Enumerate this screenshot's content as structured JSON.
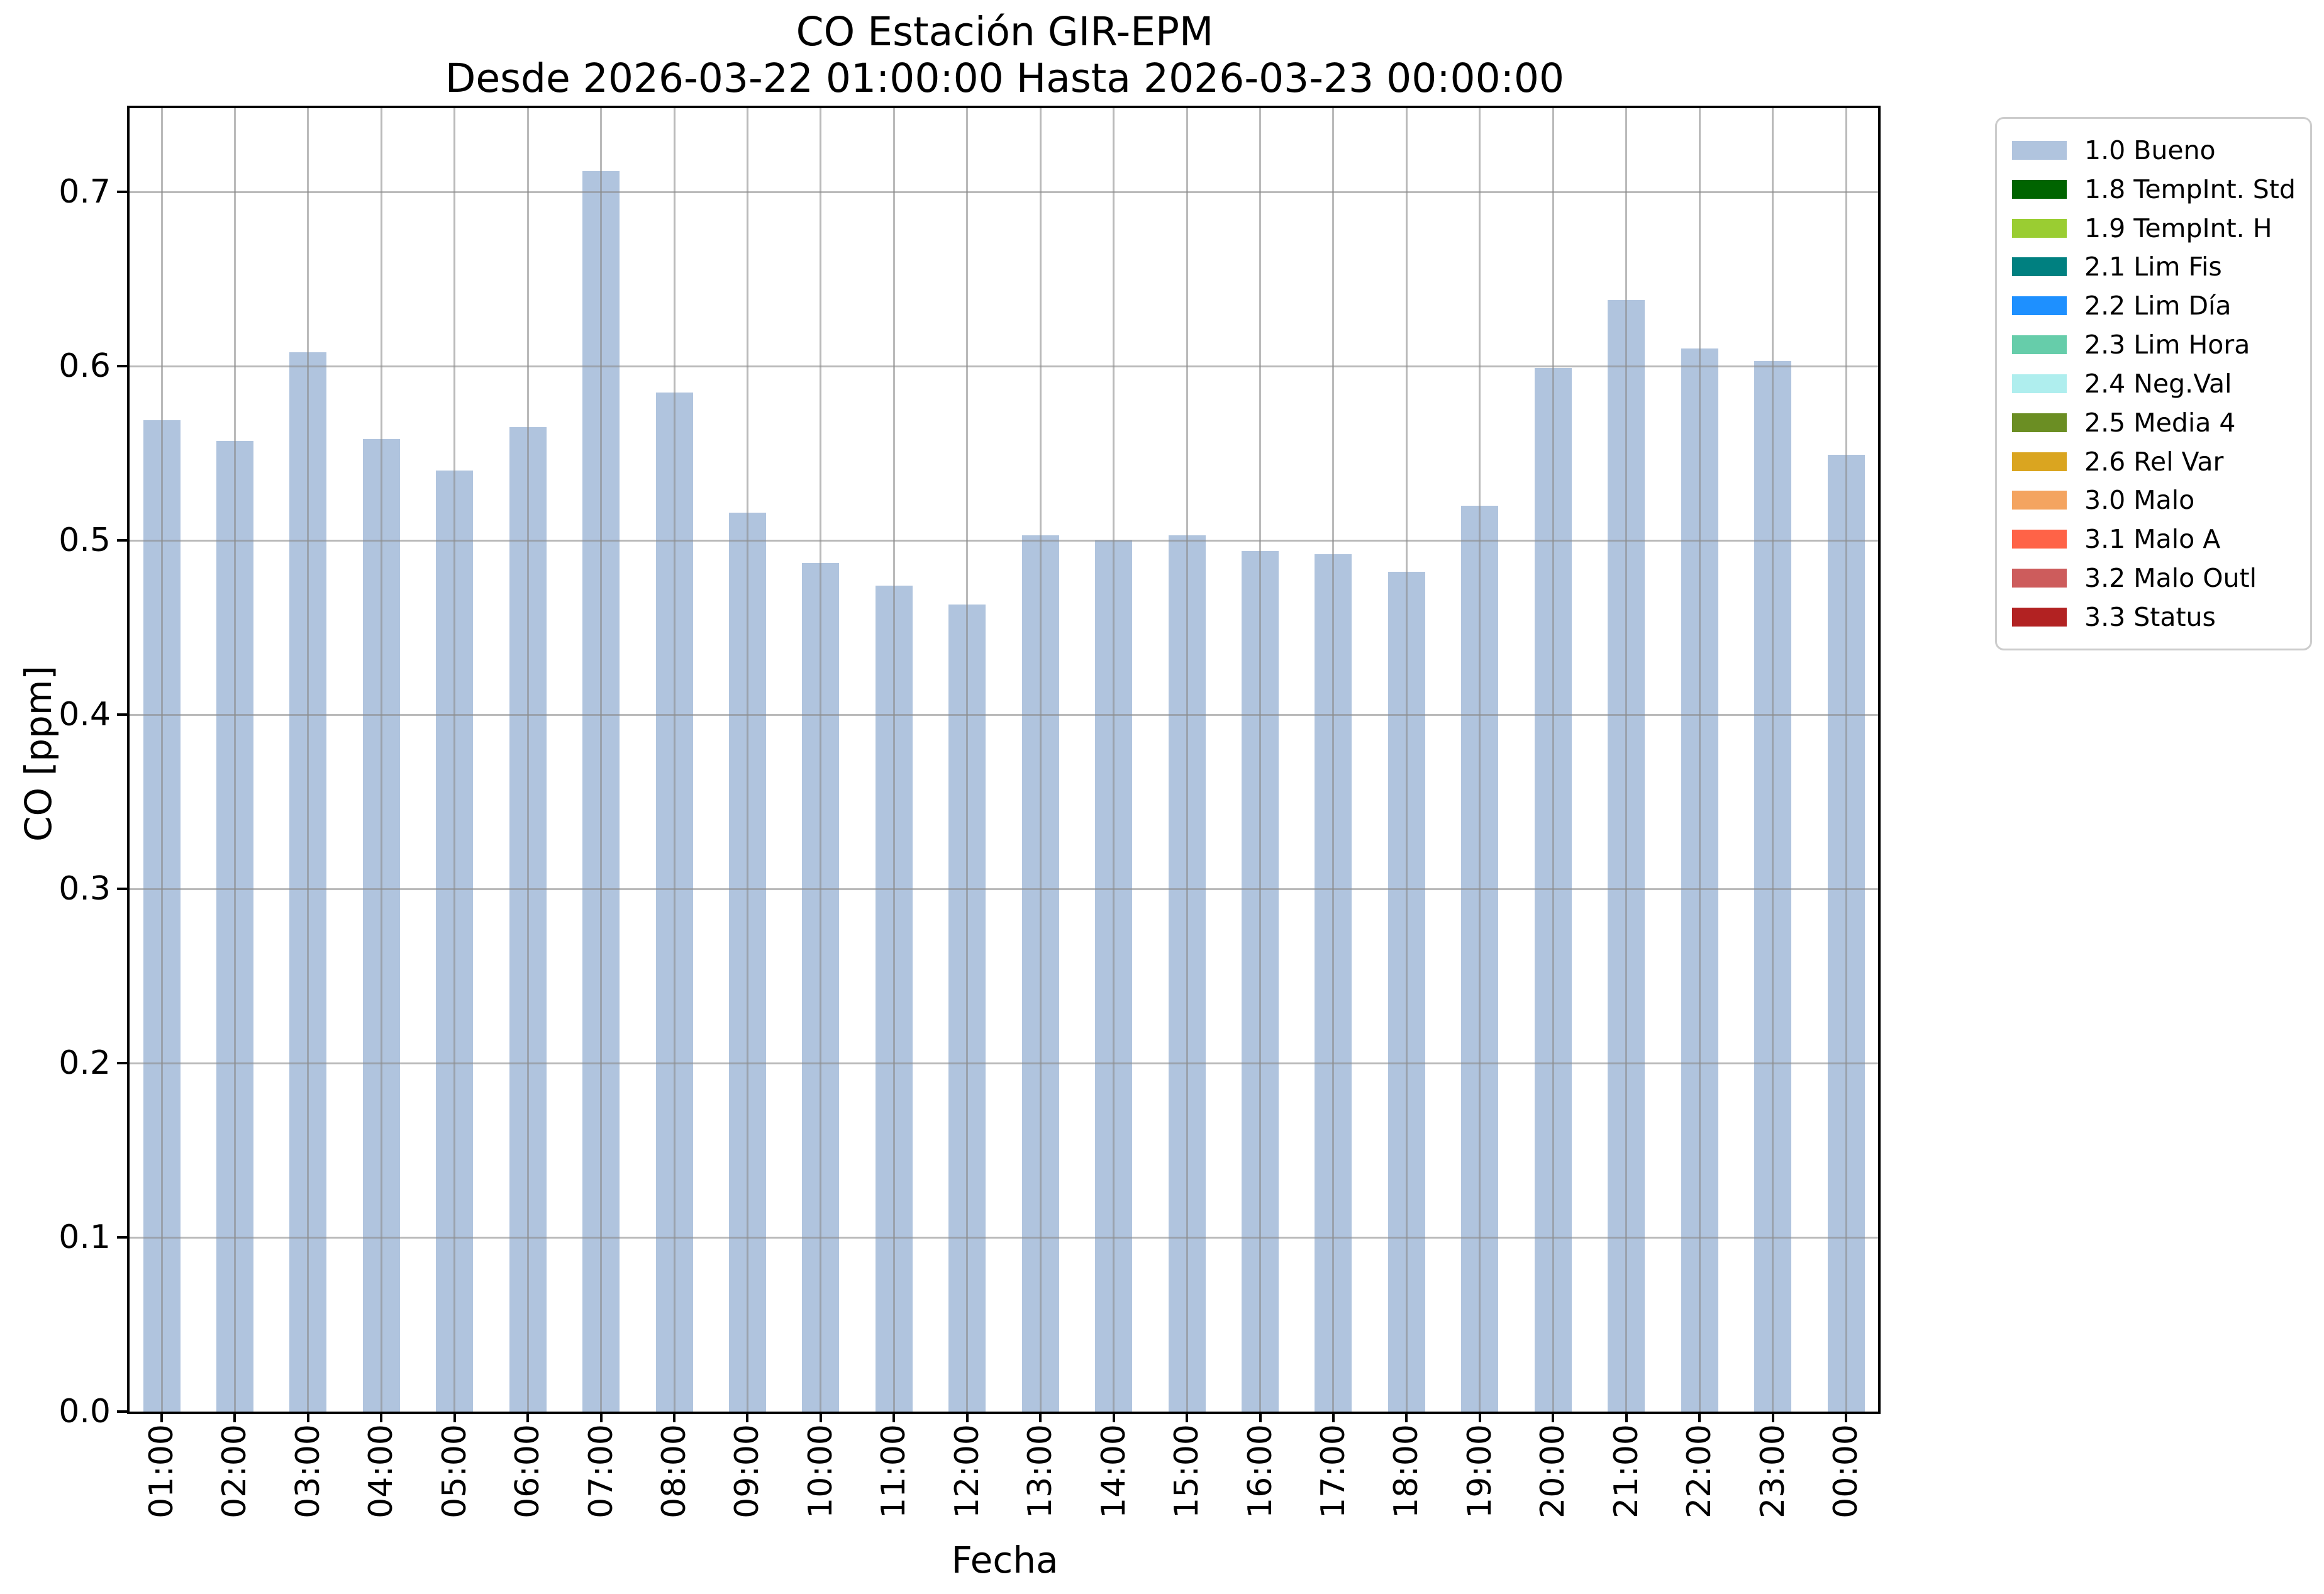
{
  "chart_data": {
    "type": "bar",
    "title": "CO Estación GIR-EPM",
    "subtitle": "Desde 2026-03-22 01:00:00 Hasta 2026-03-23 00:00:00",
    "xlabel": "Fecha",
    "ylabel": "CO [ppm]",
    "categories": [
      "01:00",
      "02:00",
      "03:00",
      "04:00",
      "05:00",
      "06:00",
      "07:00",
      "08:00",
      "09:00",
      "10:00",
      "11:00",
      "12:00",
      "13:00",
      "14:00",
      "15:00",
      "16:00",
      "17:00",
      "18:00",
      "19:00",
      "20:00",
      "21:00",
      "22:00",
      "23:00",
      "00:00"
    ],
    "series": [
      {
        "name": "1.0 Bueno",
        "values": [
          0.569,
          0.557,
          0.608,
          0.558,
          0.54,
          0.565,
          0.712,
          0.585,
          0.516,
          0.487,
          0.474,
          0.463,
          0.503,
          0.5,
          0.503,
          0.494,
          0.492,
          0.482,
          0.52,
          0.599,
          0.638,
          0.61,
          0.603,
          0.549
        ]
      }
    ],
    "bar_color": "#b0c4de",
    "ylim": [
      0,
      0.748
    ],
    "yticks": [
      "0.0",
      "0.1",
      "0.2",
      "0.3",
      "0.4",
      "0.5",
      "0.6",
      "0.7"
    ],
    "grid": true,
    "legend_position": "upper-right-outside",
    "legend": [
      {
        "label": "1.0 Bueno",
        "color": "#b0c4de"
      },
      {
        "label": "1.8 TempInt. Std",
        "color": "#006400"
      },
      {
        "label": "1.9 TempInt. H",
        "color": "#9acd32"
      },
      {
        "label": "2.1 Lim Fis",
        "color": "#008080"
      },
      {
        "label": "2.2 Lim Día",
        "color": "#1e90ff"
      },
      {
        "label": "2.3 Lim Hora",
        "color": "#66cdaa"
      },
      {
        "label": "2.4 Neg.Val",
        "color": "#afeeee"
      },
      {
        "label": "2.5 Media 4",
        "color": "#6b8e23"
      },
      {
        "label": "2.6 Rel Var",
        "color": "#daa520"
      },
      {
        "label": "3.0 Malo",
        "color": "#f4a460"
      },
      {
        "label": "3.1 Malo A",
        "color": "#ff6347"
      },
      {
        "label": "3.2 Malo Outl",
        "color": "#cd5c5c"
      },
      {
        "label": "3.3 Status",
        "color": "#b22222"
      }
    ]
  }
}
